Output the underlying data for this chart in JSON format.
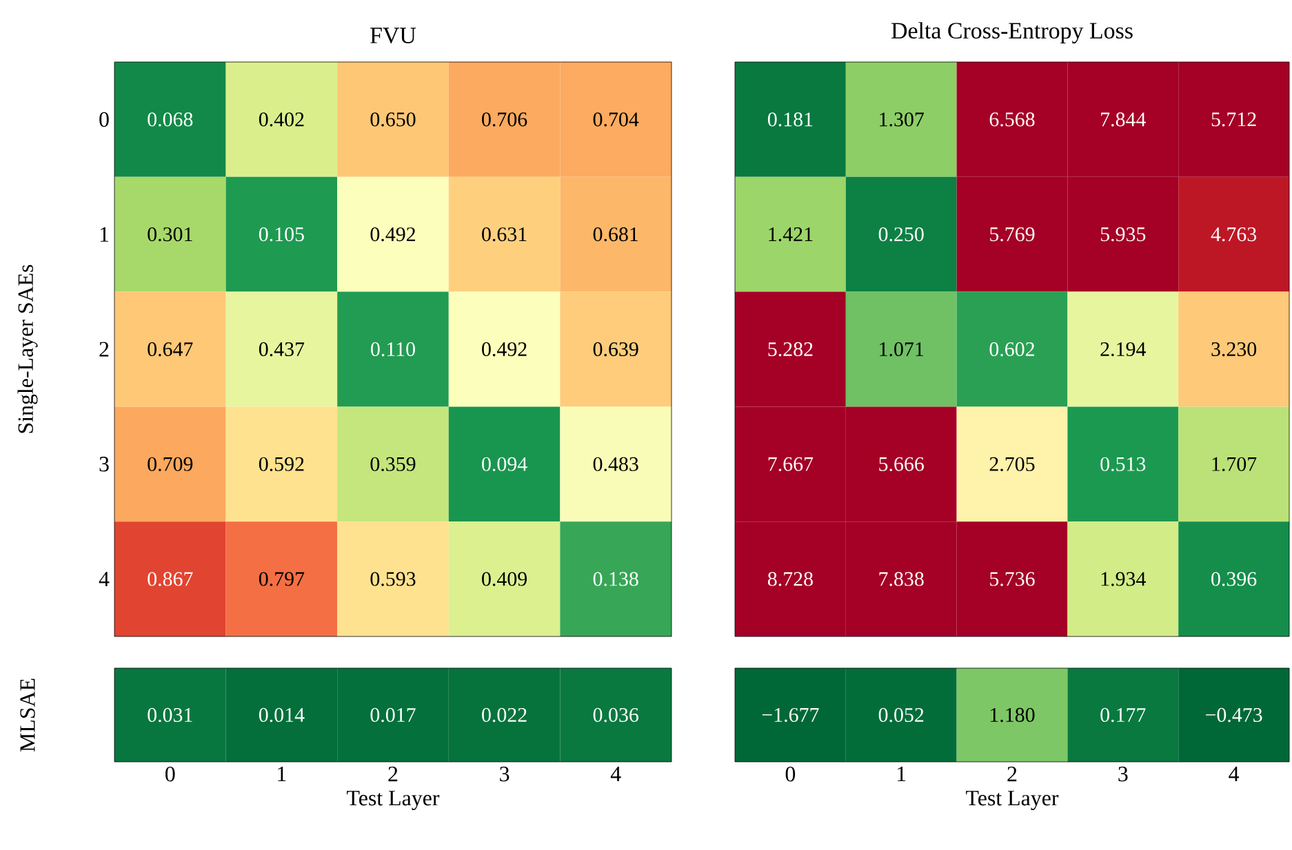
{
  "chart_data": [
    {
      "type": "heatmap",
      "title": "FVU",
      "ylabel": "Single-Layer SAEs",
      "categories": [
        "0",
        "1",
        "2",
        "3",
        "4"
      ],
      "y_categories": [
        "0",
        "1",
        "2",
        "3",
        "4"
      ],
      "tick_labels": "y",
      "data_labels": true,
      "cells": [
        [
          0.068,
          0.402,
          0.65,
          0.706,
          0.704
        ],
        [
          0.301,
          0.105,
          0.492,
          0.631,
          0.681
        ],
        [
          0.647,
          0.437,
          0.11,
          0.492,
          0.639
        ],
        [
          0.709,
          0.592,
          0.359,
          0.094,
          0.483
        ],
        [
          0.867,
          0.797,
          0.593,
          0.409,
          0.138
        ]
      ],
      "cell_labels": [
        [
          "0.068",
          "0.402",
          "0.650",
          "0.706",
          "0.704"
        ],
        [
          "0.301",
          "0.105",
          "0.492",
          "0.631",
          "0.681"
        ],
        [
          "0.647",
          "0.437",
          "0.110",
          "0.492",
          "0.639"
        ],
        [
          "0.709",
          "0.592",
          "0.359",
          "0.094",
          "0.483"
        ],
        [
          "0.867",
          "0.797",
          "0.593",
          "0.409",
          "0.138"
        ]
      ]
    },
    {
      "type": "heatmap",
      "ylabel": "MLSAE",
      "xlabel": "Test Layer",
      "categories": [
        "0",
        "1",
        "2",
        "3",
        "4"
      ],
      "y_categories": [
        null
      ],
      "tick_labels": "x",
      "data_labels": true,
      "cells": [
        [
          0.031,
          0.014,
          0.017,
          0.022,
          0.036
        ]
      ],
      "cell_labels": [
        [
          "0.031",
          "0.014",
          "0.017",
          "0.022",
          "0.036"
        ]
      ]
    },
    {
      "type": "heatmap",
      "title": "Delta Cross-Entropy Loss",
      "categories": [
        "0",
        "1",
        "2",
        "3",
        "4"
      ],
      "y_categories": [
        "0",
        "1",
        "2",
        "3",
        "4"
      ],
      "tick_labels": false,
      "data_labels": true,
      "cells": [
        [
          0.181,
          1.307,
          6.568,
          7.844,
          5.712
        ],
        [
          1.421,
          0.25,
          5.769,
          5.935,
          4.763
        ],
        [
          5.282,
          1.071,
          0.602,
          2.194,
          3.23
        ],
        [
          7.667,
          5.666,
          2.705,
          0.513,
          1.707
        ],
        [
          8.728,
          7.838,
          5.736,
          1.934,
          0.396
        ]
      ],
      "cell_labels": [
        [
          "0.181",
          "1.307",
          "6.568",
          "7.844",
          "5.712"
        ],
        [
          "1.421",
          "0.250",
          "5.769",
          "5.935",
          "4.763"
        ],
        [
          "5.282",
          "1.071",
          "0.602",
          "2.194",
          "3.230"
        ],
        [
          "7.667",
          "5.666",
          "2.705",
          "0.513",
          "1.707"
        ],
        [
          "8.728",
          "7.838",
          "5.736",
          "1.934",
          "0.396"
        ]
      ]
    },
    {
      "type": "heatmap",
      "xlabel": "Test Layer",
      "categories": [
        "0",
        "1",
        "2",
        "3",
        "4"
      ],
      "y_categories": [
        null
      ],
      "tick_labels": "x",
      "data_labels": true,
      "cells": [
        [
          -1.677,
          0.052,
          1.18,
          0.177,
          -0.473
        ]
      ],
      "cell_labels": [
        [
          "−1.677",
          "0.052",
          "1.180",
          "0.177",
          "−0.473"
        ]
      ]
    }
  ]
}
